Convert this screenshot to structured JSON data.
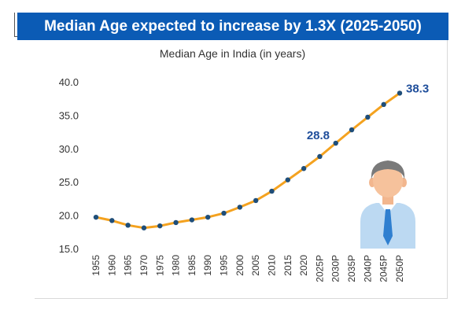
{
  "banner": {
    "title": "Median Age expected to increase by 1.3X (2025-2050)"
  },
  "colors": {
    "banner": "#0b5bb5",
    "line": "#f4a21f",
    "marker": "#1f4e79",
    "label": "#1f4e9b"
  },
  "chart_data": {
    "type": "line",
    "title": "Median Age in India (in years)",
    "xlabel": "",
    "ylabel": "",
    "ylim": [
      15.0,
      40.0
    ],
    "yticks": [
      "15.0",
      "20.0",
      "25.0",
      "30.0",
      "35.0",
      "40.0"
    ],
    "grid": false,
    "categories": [
      "1955",
      "1960",
      "1965",
      "1970",
      "1975",
      "1980",
      "1985",
      "1990",
      "1995",
      "2000",
      "2005",
      "2010",
      "2015",
      "2020",
      "2025P",
      "2030P",
      "2035P",
      "2040P",
      "2045P",
      "2050P"
    ],
    "series": [
      {
        "values": [
          19.7,
          19.2,
          18.5,
          18.1,
          18.4,
          18.9,
          19.3,
          19.7,
          20.3,
          21.2,
          22.2,
          23.6,
          25.3,
          27.0,
          28.8,
          30.8,
          32.8,
          34.7,
          36.6,
          38.3
        ]
      }
    ],
    "annotations": [
      {
        "category": "2025P",
        "text": "28.8"
      },
      {
        "category": "2050P",
        "text": "38.3"
      }
    ]
  },
  "illustration": {
    "icon": "businessman-icon"
  }
}
